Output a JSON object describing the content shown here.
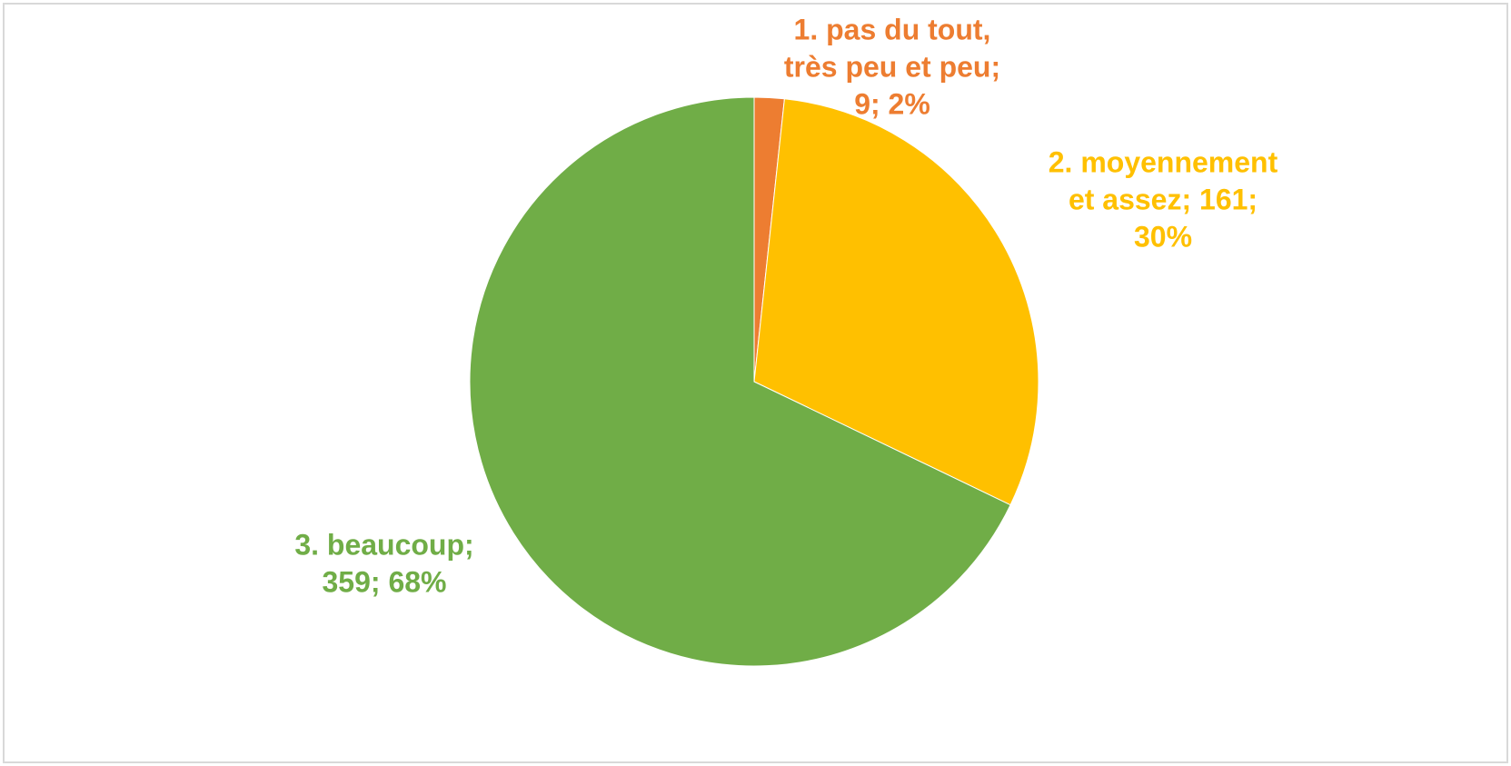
{
  "chart_data": {
    "type": "pie",
    "values": [
      9,
      161,
      359
    ],
    "value_labels": [
      [
        "1. pas du tout,",
        "très peu et peu;",
        "9; 2%"
      ],
      [
        "2. moyennement",
        "et assez; 161;",
        "30%"
      ],
      [
        "3. beaucoup;",
        "359; 68%"
      ]
    ],
    "colors": [
      "#ed7d31",
      "#ffc000",
      "#70ad47"
    ]
  }
}
